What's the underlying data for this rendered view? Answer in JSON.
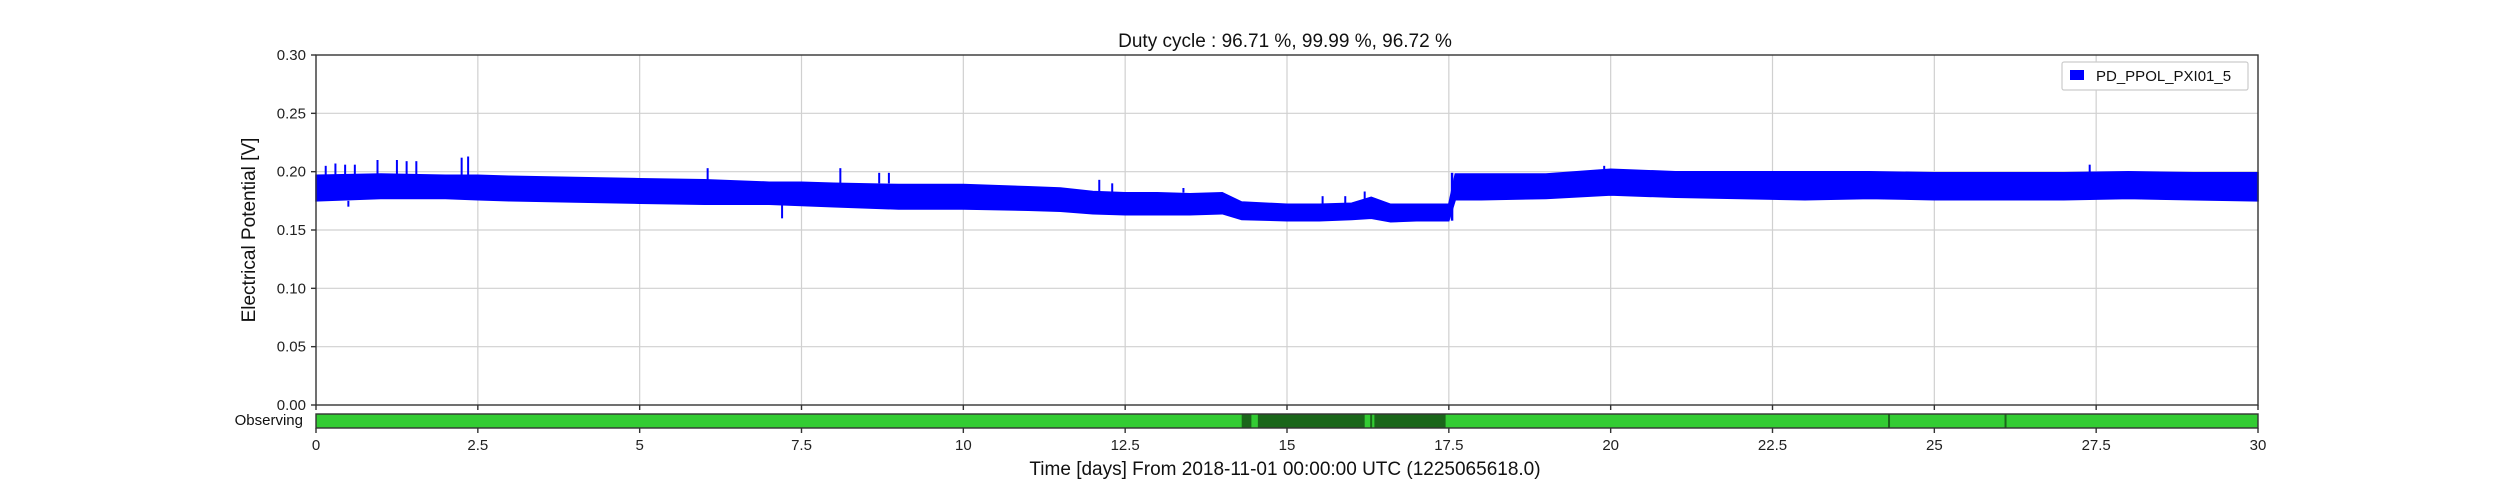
{
  "chart_data": {
    "type": "area",
    "title": "Duty cycle : 96.71 %, 99.99 %, 96.72 %",
    "xlabel": "Time [days] From 2018-11-01 00:00:00 UTC (1225065618.0)",
    "ylabel": "Electrical Potential [V]",
    "xlim": [
      0,
      30
    ],
    "ylim": [
      0,
      0.3
    ],
    "xticks": [
      "0",
      "2.5",
      "5",
      "7.5",
      "10",
      "12.5",
      "15",
      "17.5",
      "20",
      "22.5",
      "25",
      "27.5",
      "30"
    ],
    "yticks": [
      "0.00",
      "0.05",
      "0.10",
      "0.15",
      "0.20",
      "0.25",
      "0.30"
    ],
    "grid": true,
    "legend_position": "top-right",
    "series": [
      {
        "name": "PD_PPOL_PXI01_5",
        "color": "#0000ff",
        "x": [
          0,
          1,
          2,
          2.5,
          3,
          4,
          5,
          6,
          7,
          7.5,
          8,
          9,
          10,
          11,
          11.5,
          12,
          12.5,
          13,
          13.5,
          14,
          14.3,
          15,
          15.5,
          16,
          16.3,
          16.6,
          17,
          17.5,
          17.6,
          18,
          19,
          20,
          21,
          22,
          23,
          24,
          25,
          26,
          27,
          28,
          29,
          30
        ],
        "upper": [
          0.197,
          0.198,
          0.197,
          0.197,
          0.196,
          0.195,
          0.194,
          0.193,
          0.191,
          0.191,
          0.19,
          0.189,
          0.189,
          0.187,
          0.186,
          0.183,
          0.182,
          0.182,
          0.181,
          0.182,
          0.174,
          0.172,
          0.172,
          0.173,
          0.178,
          0.172,
          0.172,
          0.172,
          0.198,
          0.198,
          0.198,
          0.202,
          0.2,
          0.2,
          0.2,
          0.2,
          0.199,
          0.199,
          0.199,
          0.2,
          0.199,
          0.199
        ],
        "lower": [
          0.175,
          0.177,
          0.177,
          0.176,
          0.175,
          0.174,
          0.173,
          0.172,
          0.172,
          0.171,
          0.17,
          0.168,
          0.168,
          0.167,
          0.166,
          0.164,
          0.163,
          0.163,
          0.163,
          0.164,
          0.159,
          0.158,
          0.158,
          0.159,
          0.16,
          0.157,
          0.158,
          0.158,
          0.176,
          0.176,
          0.177,
          0.18,
          0.178,
          0.177,
          0.176,
          0.177,
          0.176,
          0.176,
          0.176,
          0.177,
          0.176,
          0.175
        ],
        "spikes": [
          {
            "x": 0.15,
            "y": 0.205
          },
          {
            "x": 0.3,
            "y": 0.207
          },
          {
            "x": 0.45,
            "y": 0.206
          },
          {
            "x": 0.6,
            "y": 0.206
          },
          {
            "x": 0.95,
            "y": 0.21
          },
          {
            "x": 1.25,
            "y": 0.21
          },
          {
            "x": 1.4,
            "y": 0.209
          },
          {
            "x": 1.55,
            "y": 0.209
          },
          {
            "x": 2.25,
            "y": 0.212
          },
          {
            "x": 2.35,
            "y": 0.213
          },
          {
            "x": 6.05,
            "y": 0.203
          },
          {
            "x": 8.1,
            "y": 0.203
          },
          {
            "x": 8.7,
            "y": 0.199
          },
          {
            "x": 8.85,
            "y": 0.199
          },
          {
            "x": 12.1,
            "y": 0.193
          },
          {
            "x": 12.3,
            "y": 0.19
          },
          {
            "x": 13.4,
            "y": 0.186
          },
          {
            "x": 15.55,
            "y": 0.179
          },
          {
            "x": 15.9,
            "y": 0.179
          },
          {
            "x": 16.2,
            "y": 0.183
          },
          {
            "x": 19.9,
            "y": 0.205
          },
          {
            "x": 27.4,
            "y": 0.206
          }
        ],
        "dips": [
          {
            "x": 7.2,
            "y": 0.16
          },
          {
            "x": 0.5,
            "y": 0.17
          }
        ]
      }
    ],
    "segments": {
      "label": "Observing",
      "xlim": [
        0,
        30
      ],
      "active_color": "#33cc33",
      "known_color": "#1a661a",
      "known": [
        [
          14.3,
          14.45
        ],
        [
          14.55,
          16.2
        ],
        [
          16.35,
          17.45
        ]
      ],
      "markers": [
        14.35,
        16.3,
        24.3,
        26.1
      ]
    }
  }
}
